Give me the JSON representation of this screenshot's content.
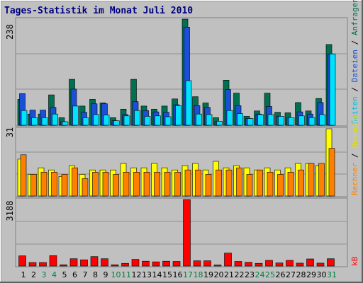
{
  "title": "Tages-Statistik im Monat Juli 2010",
  "colors": {
    "background": "#c0c0c0",
    "title": "#000080",
    "grid": "#909090",
    "anfragen": "#007050",
    "dateien": "#1a4fd6",
    "seiten": "#00e0ff",
    "besuche": "#ffff00",
    "rechner": "#ff8000",
    "kb": "#ff0000",
    "weekend": "#008040",
    "weekday": "#000000",
    "label_kb": "#ff0000"
  },
  "panel_labels": {
    "top": {
      "max": "238",
      "right": [
        {
          "text": "Anfragen",
          "color": "#007050"
        },
        {
          "text": "Dateien",
          "color": "#1a4fd6"
        },
        {
          "text": "Seiten",
          "color": "#00c0e0"
        }
      ]
    },
    "middle": {
      "max": "31",
      "right": [
        {
          "text": "Besuche",
          "color": "#e0e000"
        },
        {
          "text": "Rechner",
          "color": "#ff8000"
        }
      ]
    },
    "bottom": {
      "max": "3188",
      "right": [
        {
          "text": "kB",
          "color": "#ff0000"
        }
      ]
    }
  },
  "chart_data": [
    {
      "type": "bar",
      "title": "Tages-Statistik im Monat Juli 2010",
      "categories": [
        "1",
        "2",
        "3",
        "4",
        "5",
        "6",
        "7",
        "8",
        "9",
        "10",
        "11",
        "12",
        "13",
        "14",
        "15",
        "16",
        "17",
        "18",
        "19",
        "20",
        "21",
        "22",
        "23",
        "24",
        "25",
        "26",
        "27",
        "28",
        "29",
        "30",
        "31"
      ],
      "weekend_days": [
        3,
        4,
        10,
        11,
        17,
        18,
        24,
        25,
        31
      ],
      "ylim": [
        0,
        238
      ],
      "series": [
        {
          "name": "Anfragen",
          "values": [
            58,
            25,
            25,
            68,
            17,
            103,
            43,
            58,
            50,
            17,
            36,
            103,
            43,
            36,
            43,
            59,
            238,
            64,
            50,
            17,
            101,
            72,
            20,
            32,
            72,
            29,
            28,
            51,
            32,
            60,
            181
          ]
        },
        {
          "name": "Dateien",
          "values": [
            71,
            34,
            34,
            40,
            8,
            81,
            29,
            48,
            48,
            10,
            24,
            53,
            33,
            30,
            29,
            46,
            220,
            44,
            40,
            9,
            80,
            44,
            15,
            25,
            42,
            20,
            17,
            30,
            25,
            51,
            160
          ]
        },
        {
          "name": "Seiten",
          "values": [
            33,
            17,
            17,
            25,
            8,
            43,
            17,
            24,
            23,
            10,
            21,
            33,
            20,
            21,
            19,
            44,
            100,
            25,
            24,
            9,
            33,
            26,
            15,
            24,
            24,
            20,
            17,
            21,
            17,
            24,
            160
          ]
        }
      ]
    },
    {
      "type": "bar",
      "ylim": [
        0,
        31
      ],
      "series": [
        {
          "name": "Besuche",
          "values": [
            17,
            10,
            13,
            12,
            9,
            14,
            10,
            12,
            12,
            12,
            15,
            13,
            13,
            15,
            13,
            12,
            14,
            15,
            12,
            16,
            13,
            14,
            13,
            12,
            13,
            12,
            13,
            15,
            15,
            14,
            31
          ]
        },
        {
          "name": "Rechner",
          "values": [
            19,
            10,
            11,
            11,
            10,
            13,
            8,
            11,
            11,
            10,
            11,
            11,
            11,
            11,
            11,
            11,
            12,
            12,
            10,
            12,
            12,
            13,
            10,
            12,
            11,
            10,
            11,
            12,
            15,
            15,
            22
          ]
        }
      ]
    },
    {
      "type": "bar",
      "ylim": [
        0,
        3188
      ],
      "series": [
        {
          "name": "kB",
          "values": [
            490,
            170,
            170,
            500,
            60,
            350,
            300,
            450,
            350,
            60,
            130,
            320,
            230,
            200,
            230,
            220,
            3188,
            250,
            250,
            50,
            620,
            220,
            180,
            130,
            270,
            150,
            270,
            140,
            340,
            140,
            350
          ]
        }
      ]
    }
  ]
}
